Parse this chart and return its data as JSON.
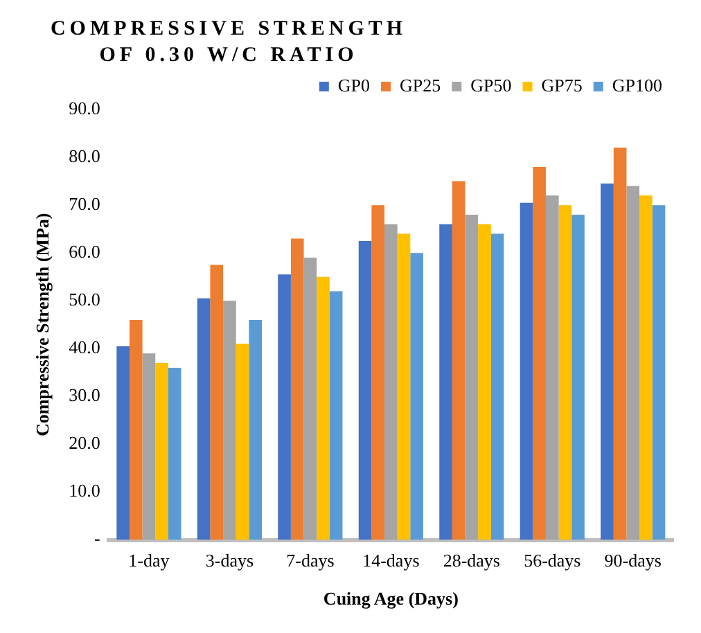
{
  "chart_data": {
    "type": "bar",
    "title": "COMPRESSIVE STRENGTH OF 0.30 W/C RATIO",
    "xlabel": "Cuing Age (Days)",
    "ylabel": "Compressive Strength (MPa)",
    "categories": [
      "1-day",
      "3-days",
      "7-days",
      "14-days",
      "28-days",
      "56-days",
      "90-days"
    ],
    "series": [
      {
        "name": "GP0",
        "color": "#4472c4",
        "values": [
          40.5,
          50.5,
          55.5,
          62.5,
          66,
          70.5,
          74.5
        ]
      },
      {
        "name": "GP25",
        "color": "#ed7d31",
        "values": [
          46,
          57.5,
          63,
          70,
          75,
          78,
          82
        ]
      },
      {
        "name": "GP50",
        "color": "#a5a5a5",
        "values": [
          39,
          50,
          59,
          66,
          68,
          72,
          74
        ]
      },
      {
        "name": "GP75",
        "color": "#ffc000",
        "values": [
          37,
          41,
          55,
          64,
          66,
          70,
          72
        ]
      },
      {
        "name": "GP100",
        "color": "#5b9bd5",
        "values": [
          36,
          46,
          52,
          60,
          64,
          68,
          70
        ]
      }
    ],
    "ylim": [
      0,
      90
    ],
    "yticks": [
      {
        "value": 0,
        "label": "-"
      },
      {
        "value": 10,
        "label": "10.0"
      },
      {
        "value": 20,
        "label": "20.0"
      },
      {
        "value": 30,
        "label": "30.0"
      },
      {
        "value": 40,
        "label": "40.0"
      },
      {
        "value": 50,
        "label": "50.0"
      },
      {
        "value": 60,
        "label": "60.0"
      },
      {
        "value": 70,
        "label": "70.0"
      },
      {
        "value": 80,
        "label": "80.0"
      },
      {
        "value": 90,
        "label": "90.0"
      }
    ],
    "grid": false,
    "legend": "top right"
  }
}
